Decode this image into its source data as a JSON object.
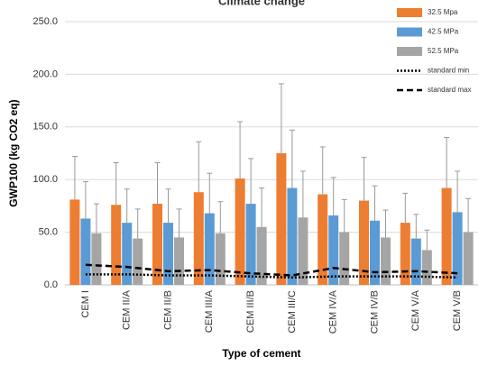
{
  "chart_data": {
    "type": "bar",
    "title": "Climate change",
    "x_label": "Type of cement",
    "y_label": "GWP100 (kg CO2 eq)",
    "categories": [
      "CEM I",
      "CEM II/A",
      "CEM II/B",
      "CEM III/A",
      "CEM III/B",
      "CEM III/C",
      "CEM IV/A",
      "CEM IV/B",
      "CEM V/A",
      "CEM V/B"
    ],
    "series": [
      {
        "name": "32.5 Mpa",
        "color": "#ed7d31",
        "values": [
          81,
          76,
          77,
          88,
          101,
          125,
          86,
          80,
          59,
          92
        ],
        "errors": [
          41,
          40,
          39,
          48,
          54,
          66,
          45,
          41,
          28,
          48
        ]
      },
      {
        "name": "42.5 MPa",
        "color": "#5b9bd5",
        "values": [
          63,
          59,
          59,
          68,
          77,
          92,
          66,
          61,
          44,
          69
        ],
        "errors": [
          35,
          32,
          32,
          38,
          43,
          55,
          36,
          33,
          23,
          39
        ]
      },
      {
        "name": "52.5 MPa",
        "color": "#a5a5a5",
        "values": [
          49,
          44,
          45,
          49,
          55,
          64,
          50,
          45,
          33,
          50
        ],
        "errors": [
          28,
          28,
          27,
          30,
          37,
          44,
          31,
          26,
          19,
          32
        ]
      },
      {
        "name": "standard min",
        "type": "line",
        "style": "dotted",
        "color": "#000000",
        "values": [
          10,
          10,
          9,
          9,
          8,
          7,
          8,
          8,
          8,
          7
        ]
      },
      {
        "name": "standard max",
        "type": "line",
        "style": "dashed",
        "color": "#000000",
        "values": [
          19,
          17,
          13,
          14,
          11,
          9,
          16,
          12,
          13,
          11
        ]
      }
    ],
    "ylim": [
      0,
      250
    ],
    "yticks": [
      {
        "value": 0,
        "label": "0.0"
      },
      {
        "value": 50,
        "label": "50.0"
      },
      {
        "value": 100,
        "label": "100.0"
      },
      {
        "value": 150,
        "label": "150.0"
      },
      {
        "value": 200,
        "label": "200.0"
      },
      {
        "value": 250,
        "label": "250.0"
      }
    ],
    "grid": true,
    "legend": "upper right"
  }
}
